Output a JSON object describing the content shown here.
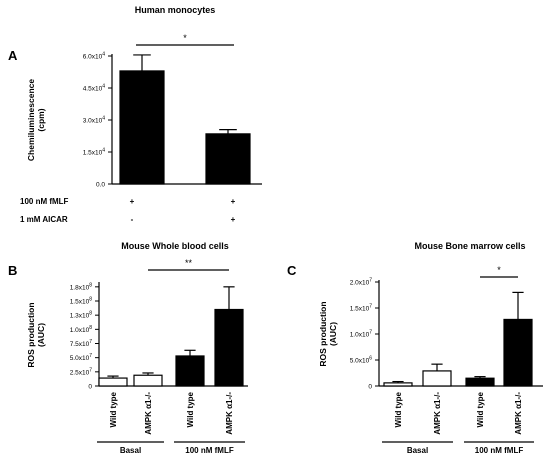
{
  "chart_data": [
    {
      "panel": "A",
      "type": "bar",
      "title": "Human monocytes",
      "ylabel_lines": [
        "Chemiluminescence",
        "(cpm)"
      ],
      "ylim": [
        0,
        60000
      ],
      "yticks": [
        "0.0",
        "1.5x10",
        "3.0x10",
        "4.5x10",
        "6.0x10"
      ],
      "ytick_values": [
        0,
        15000,
        30000,
        45000,
        60000
      ],
      "ytick_exponent": "4",
      "series": [
        {
          "values": [
            53000,
            23500
          ],
          "errors": [
            7500,
            2000
          ],
          "fill": "#000000"
        }
      ],
      "conditions": [
        {
          "label": "100 nM fMLF",
          "marks": [
            "+",
            "+"
          ]
        },
        {
          "label": "1 mM AICAR",
          "marks": [
            "-",
            "+"
          ]
        }
      ],
      "significance": [
        {
          "from": 0,
          "to": 1,
          "label": "*"
        }
      ]
    },
    {
      "panel": "B",
      "type": "bar",
      "title": "Mouse Whole blood cells",
      "ylabel_lines": [
        "ROS production",
        "(AUC)"
      ],
      "ylim": [
        0,
        180000000
      ],
      "yticks": [
        "0",
        "2.5x10",
        "5.0x10",
        "7.5x10",
        "1.0x10",
        "1.3x10",
        "1.5x10",
        "1.8x10"
      ],
      "ytick_values": [
        0,
        25000000,
        50000000,
        75000000,
        100000000,
        125000000,
        150000000,
        175000000
      ],
      "ytick_exponents": [
        "",
        "7",
        "7",
        "7",
        "8",
        "8",
        "8",
        "8"
      ],
      "categories": [
        "Wild type",
        "AMPK α1-/-",
        "Wild type",
        "AMPK α1-/-"
      ],
      "series": [
        {
          "values": [
            14000000,
            19000000,
            53000000,
            135000000
          ],
          "errors": [
            3500000,
            4000000,
            10000000,
            40000000
          ],
          "fills": [
            "#ffffff",
            "#ffffff",
            "#000000",
            "#000000"
          ]
        }
      ],
      "groups": [
        "Basal",
        "100 nM fMLF"
      ],
      "significance": [
        {
          "from": 1,
          "to": 3,
          "label": "**"
        }
      ]
    },
    {
      "panel": "C",
      "type": "bar",
      "title": "Mouse Bone marrow cells",
      "ylabel_lines": [
        "ROS production",
        "(AUC)"
      ],
      "ylim": [
        0,
        20000000
      ],
      "yticks": [
        "0",
        "5.0x10",
        "1.0x10",
        "1.5x10",
        "2.0x10"
      ],
      "ytick_values": [
        0,
        5000000,
        10000000,
        15000000,
        20000000
      ],
      "ytick_exponents": [
        "",
        "6",
        "7",
        "7",
        "7"
      ],
      "categories": [
        "Wild type",
        "AMPK α1-/-",
        "Wild type",
        "AMPK α1-/-"
      ],
      "series": [
        {
          "values": [
            600000,
            2900000,
            1500000,
            12800000
          ],
          "errors": [
            250000,
            1300000,
            300000,
            5200000
          ],
          "fills": [
            "#ffffff",
            "#ffffff",
            "#000000",
            "#000000"
          ]
        }
      ],
      "groups": [
        "Basal",
        "100 nM fMLF"
      ],
      "significance": [
        {
          "from": 2,
          "to": 3,
          "label": "*"
        }
      ]
    }
  ]
}
